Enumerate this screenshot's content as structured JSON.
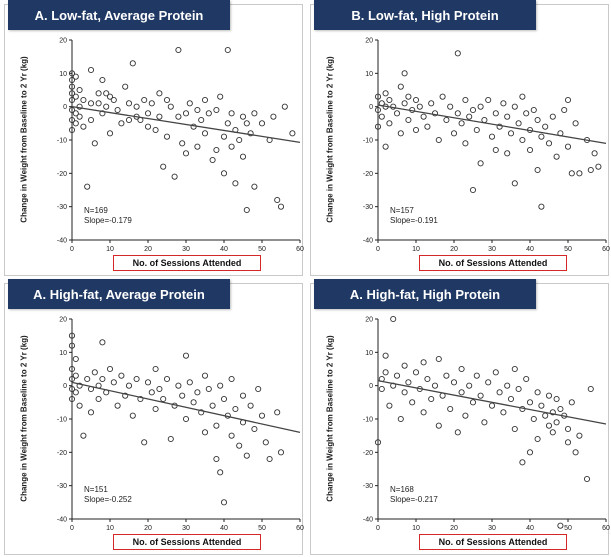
{
  "chart_data": [
    {
      "type": "scatter",
      "title": "A. Low-fat, Average Protein",
      "xlabel": "No. of Sessions Attended",
      "ylabel": "Change in Weight from Baseline to 2 Yr (kg)",
      "xlim": [
        0,
        60
      ],
      "ylim": [
        -40,
        20
      ],
      "xticks": [
        "0",
        "10",
        "20",
        "30",
        "40",
        "50",
        "60"
      ],
      "yticks": [
        "20",
        "10",
        "0",
        "-10",
        "-20",
        "-30",
        "-40"
      ],
      "n_label": "N=169",
      "slope_label": "Slope=-0.179",
      "trend": {
        "x": [
          0,
          60
        ],
        "y": [
          0,
          -10.7
        ]
      },
      "points": [
        [
          0,
          10
        ],
        [
          0,
          8
        ],
        [
          0,
          6
        ],
        [
          0,
          4
        ],
        [
          0,
          2
        ],
        [
          0,
          -1
        ],
        [
          0,
          -4
        ],
        [
          0,
          -7
        ],
        [
          1,
          9
        ],
        [
          1,
          3
        ],
        [
          1,
          -2
        ],
        [
          1,
          -5
        ],
        [
          2,
          5
        ],
        [
          2,
          0
        ],
        [
          2,
          -3
        ],
        [
          3,
          2
        ],
        [
          3,
          -6
        ],
        [
          4,
          -24
        ],
        [
          5,
          11
        ],
        [
          5,
          1
        ],
        [
          5,
          -4
        ],
        [
          6,
          -11
        ],
        [
          7,
          4
        ],
        [
          7,
          1
        ],
        [
          8,
          8
        ],
        [
          8,
          -2
        ],
        [
          9,
          4
        ],
        [
          9,
          0
        ],
        [
          10,
          3
        ],
        [
          10,
          -8
        ],
        [
          11,
          2
        ],
        [
          12,
          -1
        ],
        [
          13,
          -5
        ],
        [
          14,
          6
        ],
        [
          15,
          1
        ],
        [
          15,
          -4
        ],
        [
          16,
          13
        ],
        [
          17,
          0
        ],
        [
          17,
          -3
        ],
        [
          18,
          -4
        ],
        [
          19,
          2
        ],
        [
          20,
          -2
        ],
        [
          20,
          -6
        ],
        [
          21,
          1
        ],
        [
          22,
          -7
        ],
        [
          23,
          4
        ],
        [
          23,
          -3
        ],
        [
          24,
          -18
        ],
        [
          25,
          2
        ],
        [
          25,
          -9
        ],
        [
          26,
          0
        ],
        [
          27,
          -21
        ],
        [
          28,
          -3
        ],
        [
          28,
          17
        ],
        [
          29,
          -11
        ],
        [
          30,
          -2
        ],
        [
          30,
          -14
        ],
        [
          31,
          1
        ],
        [
          32,
          -6
        ],
        [
          33,
          -1
        ],
        [
          33,
          -12
        ],
        [
          34,
          -4
        ],
        [
          35,
          2
        ],
        [
          35,
          -8
        ],
        [
          36,
          -2
        ],
        [
          37,
          -16
        ],
        [
          38,
          -1
        ],
        [
          38,
          -13
        ],
        [
          39,
          3
        ],
        [
          40,
          -9
        ],
        [
          40,
          -20
        ],
        [
          41,
          17
        ],
        [
          41,
          -5
        ],
        [
          42,
          -2
        ],
        [
          42,
          -12
        ],
        [
          43,
          -7
        ],
        [
          43,
          -23
        ],
        [
          44,
          -10
        ],
        [
          45,
          -3
        ],
        [
          45,
          -15
        ],
        [
          46,
          -5
        ],
        [
          46,
          -31
        ],
        [
          47,
          -8
        ],
        [
          48,
          -2
        ],
        [
          48,
          -24
        ],
        [
          50,
          -5
        ],
        [
          52,
          -10
        ],
        [
          53,
          -3
        ],
        [
          54,
          -28
        ],
        [
          55,
          -30
        ],
        [
          56,
          0
        ],
        [
          58,
          -8
        ]
      ]
    },
    {
      "type": "scatter",
      "title": "B. Low-fat, High Protein",
      "xlabel": "No. of Sessions Attended",
      "ylabel": "Change in Weight from Baseline to 2 Yr (kg)",
      "xlim": [
        0,
        60
      ],
      "ylim": [
        -40,
        20
      ],
      "xticks": [
        "0",
        "10",
        "20",
        "30",
        "40",
        "50",
        "60"
      ],
      "yticks": [
        "20",
        "10",
        "0",
        "-10",
        "-20",
        "-30",
        "-40"
      ],
      "n_label": "N=157",
      "slope_label": "Slope=-0.191",
      "trend": {
        "x": [
          0,
          60
        ],
        "y": [
          0.5,
          -11
        ]
      },
      "points": [
        [
          0,
          3
        ],
        [
          0,
          -1
        ],
        [
          0,
          -6
        ],
        [
          1,
          1
        ],
        [
          1,
          -3
        ],
        [
          2,
          4
        ],
        [
          2,
          0
        ],
        [
          2,
          -12
        ],
        [
          3,
          2
        ],
        [
          3,
          -5
        ],
        [
          4,
          0
        ],
        [
          5,
          -2
        ],
        [
          6,
          6
        ],
        [
          6,
          -8
        ],
        [
          7,
          10
        ],
        [
          7,
          1
        ],
        [
          8,
          3
        ],
        [
          8,
          -4
        ],
        [
          9,
          -1
        ],
        [
          10,
          2
        ],
        [
          10,
          -7
        ],
        [
          11,
          0
        ],
        [
          12,
          -3
        ],
        [
          13,
          -6
        ],
        [
          14,
          1
        ],
        [
          15,
          -2
        ],
        [
          16,
          -10
        ],
        [
          17,
          3
        ],
        [
          18,
          -4
        ],
        [
          19,
          0
        ],
        [
          20,
          -8
        ],
        [
          21,
          16
        ],
        [
          21,
          -2
        ],
        [
          22,
          -5
        ],
        [
          23,
          2
        ],
        [
          23,
          -11
        ],
        [
          24,
          -3
        ],
        [
          25,
          -25
        ],
        [
          25,
          -1
        ],
        [
          26,
          -7
        ],
        [
          27,
          0
        ],
        [
          27,
          -17
        ],
        [
          28,
          -4
        ],
        [
          29,
          2
        ],
        [
          30,
          -9
        ],
        [
          31,
          -2
        ],
        [
          31,
          -13
        ],
        [
          32,
          -6
        ],
        [
          33,
          1
        ],
        [
          34,
          -3
        ],
        [
          34,
          -14
        ],
        [
          35,
          -8
        ],
        [
          36,
          -23
        ],
        [
          36,
          0
        ],
        [
          37,
          -5
        ],
        [
          38,
          3
        ],
        [
          38,
          -10
        ],
        [
          39,
          -2
        ],
        [
          40,
          -7
        ],
        [
          40,
          -13
        ],
        [
          41,
          -1
        ],
        [
          42,
          -19
        ],
        [
          42,
          -4
        ],
        [
          43,
          -30
        ],
        [
          43,
          -9
        ],
        [
          44,
          -6
        ],
        [
          45,
          -11
        ],
        [
          46,
          -3
        ],
        [
          47,
          -15
        ],
        [
          48,
          -8
        ],
        [
          49,
          -1
        ],
        [
          50,
          2
        ],
        [
          50,
          -12
        ],
        [
          51,
          -20
        ],
        [
          52,
          -5
        ],
        [
          53,
          -20
        ],
        [
          55,
          -10
        ],
        [
          56,
          -19
        ],
        [
          57,
          -14
        ],
        [
          58,
          -18
        ]
      ]
    },
    {
      "type": "scatter",
      "title": "A. High-fat, Average Protein",
      "xlabel": "No. of Sessions Attended",
      "ylabel": "Change in Weight from Baseline to 2 Yr (kg)",
      "xlim": [
        0,
        60
      ],
      "ylim": [
        -40,
        20
      ],
      "xticks": [
        "0",
        "10",
        "20",
        "30",
        "40",
        "50",
        "60"
      ],
      "yticks": [
        "20",
        "10",
        "0",
        "-10",
        "-20",
        "-30",
        "-40"
      ],
      "n_label": "N=151",
      "slope_label": "Slope=-0.252",
      "trend": {
        "x": [
          0,
          60
        ],
        "y": [
          1,
          -14
        ]
      },
      "points": [
        [
          0,
          15
        ],
        [
          0,
          12
        ],
        [
          0,
          5
        ],
        [
          0,
          2
        ],
        [
          0,
          -1
        ],
        [
          0,
          -4
        ],
        [
          1,
          8
        ],
        [
          1,
          3
        ],
        [
          1,
          -2
        ],
        [
          2,
          0
        ],
        [
          2,
          -6
        ],
        [
          3,
          -15
        ],
        [
          4,
          2
        ],
        [
          5,
          -1
        ],
        [
          5,
          -8
        ],
        [
          6,
          4
        ],
        [
          7,
          0
        ],
        [
          7,
          -4
        ],
        [
          8,
          13
        ],
        [
          8,
          2
        ],
        [
          9,
          -2
        ],
        [
          10,
          5
        ],
        [
          11,
          1
        ],
        [
          12,
          -6
        ],
        [
          13,
          3
        ],
        [
          14,
          -3
        ],
        [
          15,
          0
        ],
        [
          16,
          -9
        ],
        [
          17,
          2
        ],
        [
          18,
          -4
        ],
        [
          19,
          -17
        ],
        [
          20,
          1
        ],
        [
          21,
          -2
        ],
        [
          22,
          5
        ],
        [
          22,
          -7
        ],
        [
          23,
          -1
        ],
        [
          24,
          -4
        ],
        [
          25,
          2
        ],
        [
          26,
          -16
        ],
        [
          27,
          -6
        ],
        [
          28,
          0
        ],
        [
          29,
          -3
        ],
        [
          30,
          9
        ],
        [
          30,
          -10
        ],
        [
          31,
          1
        ],
        [
          32,
          -5
        ],
        [
          33,
          -2
        ],
        [
          34,
          -8
        ],
        [
          35,
          3
        ],
        [
          35,
          -14
        ],
        [
          36,
          -1
        ],
        [
          37,
          -6
        ],
        [
          38,
          -22
        ],
        [
          38,
          -12
        ],
        [
          39,
          0
        ],
        [
          39,
          -26
        ],
        [
          40,
          -4
        ],
        [
          40,
          -35
        ],
        [
          41,
          -9
        ],
        [
          42,
          2
        ],
        [
          42,
          -15
        ],
        [
          43,
          -7
        ],
        [
          44,
          -18
        ],
        [
          45,
          -3
        ],
        [
          45,
          -11
        ],
        [
          46,
          -21
        ],
        [
          47,
          -6
        ],
        [
          48,
          -13
        ],
        [
          49,
          -1
        ],
        [
          50,
          -9
        ],
        [
          51,
          -17
        ],
        [
          52,
          -22
        ],
        [
          54,
          -8
        ],
        [
          55,
          -20
        ]
      ]
    },
    {
      "type": "scatter",
      "title": "A. High-fat, High Protein",
      "xlabel": "No. of Sessions Attended",
      "ylabel": "Change in Weight from Baseline to 2 Yr (kg)",
      "xlim": [
        0,
        60
      ],
      "ylim": [
        -40,
        20
      ],
      "xticks": [
        "0",
        "10",
        "20",
        "30",
        "40",
        "50",
        "60"
      ],
      "yticks": [
        "20",
        "10",
        "0",
        "-10",
        "-20",
        "-30",
        "-40"
      ],
      "n_label": "N=168",
      "slope_label": "Slope=-0.217",
      "trend": {
        "x": [
          0,
          60
        ],
        "y": [
          1.5,
          -11.5
        ]
      },
      "points": [
        [
          0,
          -17
        ],
        [
          1,
          2
        ],
        [
          1,
          -1
        ],
        [
          2,
          9
        ],
        [
          2,
          4
        ],
        [
          3,
          -6
        ],
        [
          4,
          20
        ],
        [
          4,
          0
        ],
        [
          5,
          3
        ],
        [
          6,
          -10
        ],
        [
          7,
          6
        ],
        [
          7,
          -2
        ],
        [
          8,
          1
        ],
        [
          9,
          -5
        ],
        [
          10,
          4
        ],
        [
          11,
          -1
        ],
        [
          12,
          7
        ],
        [
          12,
          -8
        ],
        [
          13,
          2
        ],
        [
          14,
          -4
        ],
        [
          15,
          0
        ],
        [
          16,
          8
        ],
        [
          16,
          -12
        ],
        [
          17,
          -3
        ],
        [
          18,
          3
        ],
        [
          19,
          -7
        ],
        [
          20,
          1
        ],
        [
          21,
          -14
        ],
        [
          22,
          5
        ],
        [
          22,
          -2
        ],
        [
          23,
          -9
        ],
        [
          24,
          0
        ],
        [
          25,
          -5
        ],
        [
          26,
          3
        ],
        [
          27,
          -3
        ],
        [
          28,
          -11
        ],
        [
          29,
          1
        ],
        [
          30,
          -6
        ],
        [
          31,
          4
        ],
        [
          32,
          -2
        ],
        [
          33,
          -8
        ],
        [
          34,
          0
        ],
        [
          35,
          -4
        ],
        [
          36,
          5
        ],
        [
          36,
          -13
        ],
        [
          37,
          -1
        ],
        [
          38,
          -23
        ],
        [
          38,
          -7
        ],
        [
          39,
          2
        ],
        [
          40,
          -5
        ],
        [
          40,
          -20
        ],
        [
          41,
          -10
        ],
        [
          42,
          -2
        ],
        [
          42,
          -16
        ],
        [
          43,
          -6
        ],
        [
          44,
          -9
        ],
        [
          45,
          -3
        ],
        [
          45,
          -12
        ],
        [
          46,
          -8
        ],
        [
          46,
          -14
        ],
        [
          47,
          -4
        ],
        [
          47,
          -11
        ],
        [
          48,
          -42
        ],
        [
          48,
          -7
        ],
        [
          49,
          -9
        ],
        [
          50,
          -13
        ],
        [
          50,
          -17
        ],
        [
          51,
          -5
        ],
        [
          52,
          -20
        ],
        [
          53,
          -15
        ],
        [
          55,
          -28
        ],
        [
          56,
          -1
        ]
      ]
    }
  ]
}
